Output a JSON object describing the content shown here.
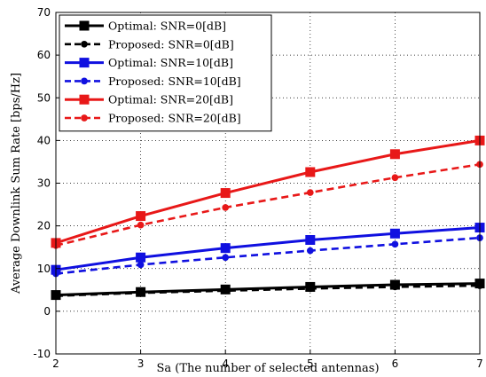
{
  "chart_data": {
    "type": "line",
    "xlabel": "Sa (The number of selected antennas)",
    "ylabel": "Average Downlink Sum Rate [bps/Hz]",
    "xlim": [
      2,
      7
    ],
    "ylim": [
      -10,
      70
    ],
    "xticks": [
      "2",
      "3",
      "4",
      "5",
      "6",
      "7"
    ],
    "yticks": [
      "-10",
      "0",
      "10",
      "20",
      "30",
      "40",
      "50",
      "60",
      "70"
    ],
    "grid": true,
    "legend_position": "top-left",
    "x": [
      2,
      3,
      4,
      5,
      6,
      7
    ],
    "series": [
      {
        "name": "Optimal: SNR=0[dB]",
        "color": "#000000",
        "dash": "solid",
        "marker": "square",
        "values": [
          3.8,
          4.5,
          5.1,
          5.7,
          6.2,
          6.5
        ]
      },
      {
        "name": "Proposed: SNR=0[dB]",
        "color": "#000000",
        "dash": "dashed",
        "marker": "circle",
        "values": [
          3.6,
          4.3,
          4.8,
          5.3,
          5.7,
          6.0
        ]
      },
      {
        "name": "Optimal: SNR=10[dB]",
        "color": "#1010e0",
        "dash": "solid",
        "marker": "square",
        "values": [
          9.7,
          12.6,
          14.8,
          16.7,
          18.2,
          19.6
        ]
      },
      {
        "name": "Proposed: SNR=10[dB]",
        "color": "#1010e0",
        "dash": "dashed",
        "marker": "circle",
        "values": [
          8.8,
          10.9,
          12.6,
          14.2,
          15.7,
          17.2
        ]
      },
      {
        "name": "Optimal: SNR=20[dB]",
        "color": "#e81818",
        "dash": "solid",
        "marker": "square",
        "values": [
          16.0,
          22.3,
          27.7,
          32.6,
          36.8,
          40.0
        ]
      },
      {
        "name": "Proposed: SNR=20[dB]",
        "color": "#e81818",
        "dash": "dashed",
        "marker": "circle",
        "values": [
          15.4,
          20.2,
          24.3,
          27.8,
          31.3,
          34.4
        ]
      }
    ]
  }
}
